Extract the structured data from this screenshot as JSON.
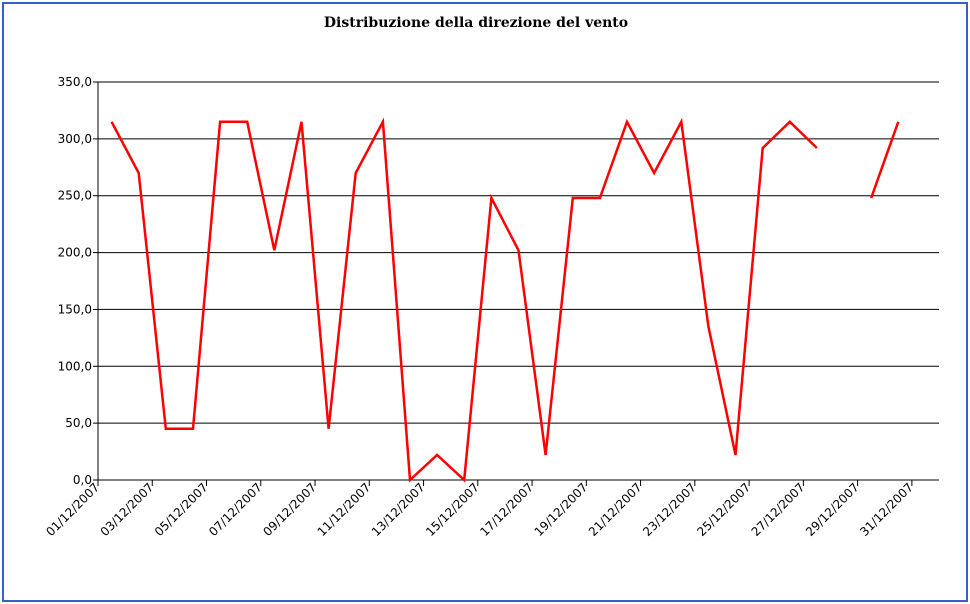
{
  "chart_data": {
    "type": "line",
    "title": "Distribuzione della direzione del vento",
    "xlabel": "",
    "ylabel": "",
    "ylim": [
      0,
      350
    ],
    "y_ticks": [
      "350,0",
      "300,0",
      "250,0",
      "200,0",
      "150,0",
      "100,0",
      "50,0",
      "0,0"
    ],
    "x_tick_labels": [
      "01/12/2007",
      "03/12/2007",
      "05/12/2007",
      "07/12/2007",
      "09/12/2007",
      "11/12/2007",
      "13/12/2007",
      "15/12/2007",
      "17/12/2007",
      "19/12/2007",
      "21/12/2007",
      "23/12/2007",
      "25/12/2007",
      "27/12/2007",
      "29/12/2007",
      "31/12/2007"
    ],
    "x": [
      "01/12/2007",
      "02/12/2007",
      "03/12/2007",
      "04/12/2007",
      "05/12/2007",
      "06/12/2007",
      "07/12/2007",
      "08/12/2007",
      "09/12/2007",
      "10/12/2007",
      "11/12/2007",
      "12/12/2007",
      "13/12/2007",
      "14/12/2007",
      "15/12/2007",
      "16/12/2007",
      "17/12/2007",
      "18/12/2007",
      "19/12/2007",
      "20/12/2007",
      "21/12/2007",
      "22/12/2007",
      "23/12/2007",
      "24/12/2007",
      "25/12/2007",
      "26/12/2007",
      "27/12/2007",
      "28/12/2007",
      "29/12/2007",
      "30/12/2007",
      "31/12/2007"
    ],
    "series": [
      {
        "values": [
          315,
          270,
          45,
          45,
          315,
          315,
          202,
          315,
          45,
          270,
          315,
          0,
          22,
          0,
          248,
          202,
          22,
          248,
          248,
          315,
          270,
          315,
          135,
          22,
          292,
          315,
          292,
          null,
          248,
          315,
          null
        ],
        "color": "#ff0000"
      }
    ],
    "grid": true,
    "legend": "none"
  }
}
